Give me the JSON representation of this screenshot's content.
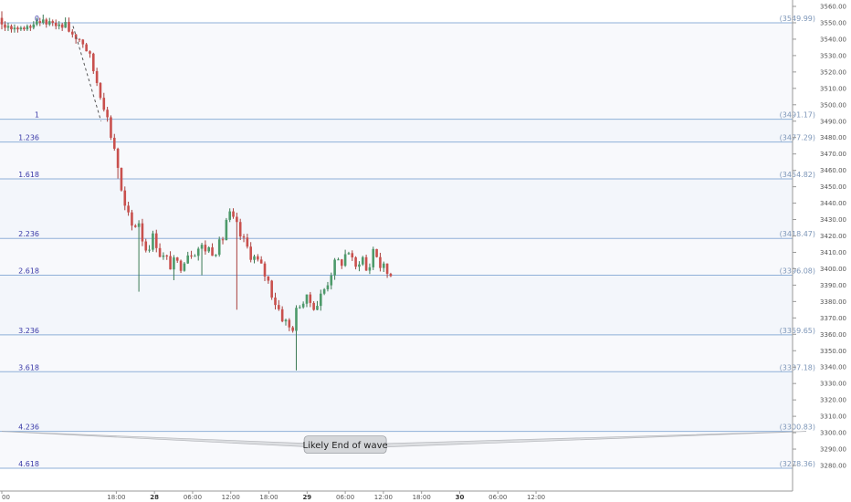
{
  "chart_data": {
    "type": "candlestick",
    "title": "",
    "xlabel": "",
    "ylabel": "",
    "ylim": [
      3275,
      3565
    ],
    "yticks": [
      3280,
      3290,
      3300,
      3310,
      3320,
      3330,
      3340,
      3350,
      3360,
      3370,
      3380,
      3390,
      3400,
      3410,
      3420,
      3430,
      3440,
      3450,
      3460,
      3470,
      3480,
      3490,
      3500,
      3510,
      3520,
      3530,
      3540,
      3550,
      3560
    ],
    "xticks": [
      {
        "label": "00",
        "hour": 0,
        "bold": false
      },
      {
        "label": "18:00",
        "hour": 18,
        "bold": false
      },
      {
        "label": "28",
        "hour": 24,
        "bold": true
      },
      {
        "label": "06:00",
        "hour": 30,
        "bold": false
      },
      {
        "label": "12:00",
        "hour": 36,
        "bold": false
      },
      {
        "label": "18:00",
        "hour": 42,
        "bold": false
      },
      {
        "label": "29",
        "hour": 48,
        "bold": true
      },
      {
        "label": "06:00",
        "hour": 54,
        "bold": false
      },
      {
        "label": "12:00",
        "hour": 60,
        "bold": false
      },
      {
        "label": "18:00",
        "hour": 66,
        "bold": false
      },
      {
        "label": "30",
        "hour": 72,
        "bold": true
      },
      {
        "label": "06:00",
        "hour": 78,
        "bold": false
      },
      {
        "label": "12:00",
        "hour": 84,
        "bold": false
      }
    ],
    "fib_levels": [
      {
        "ratio": "0",
        "price": 3549.99,
        "tag": "(3549.99)"
      },
      {
        "ratio": "1",
        "price": 3491.17,
        "tag": "(3491.17)"
      },
      {
        "ratio": "1.236",
        "price": 3477.29,
        "tag": "(3477.29)"
      },
      {
        "ratio": "1.618",
        "price": 3454.82,
        "tag": "(3454.82)"
      },
      {
        "ratio": "2.236",
        "price": 3418.47,
        "tag": "(3418.47)"
      },
      {
        "ratio": "2.618",
        "price": 3396.08,
        "tag": "(3396.08)"
      },
      {
        "ratio": "3.236",
        "price": 3359.65,
        "tag": "(3359.65)"
      },
      {
        "ratio": "3.618",
        "price": 3337.18,
        "tag": "(3337.18)"
      },
      {
        "ratio": "4.236",
        "price": 3300.83,
        "tag": "(3300.83)"
      },
      {
        "ratio": "4.618",
        "price": 3278.36,
        "tag": "(3278.36)"
      }
    ],
    "trend_line": {
      "from": {
        "hour": 11.2,
        "price": 3548
      },
      "to": {
        "hour": 15.6,
        "price": 3490
      }
    },
    "callout": {
      "text": "Likely End of wave",
      "anchor_price": 3300.8,
      "left_hour": 11.2,
      "right_hour": 86.5,
      "tip_hour": 54
    },
    "anchors": [
      {
        "hour": 10.0,
        "price": 3547
      },
      {
        "hour": 11.5,
        "price": 3543
      },
      {
        "hour": 13.0,
        "price": 3538
      },
      {
        "hour": 14.5,
        "price": 3520
      },
      {
        "hour": 16.0,
        "price": 3502
      },
      {
        "hour": 17.0,
        "price": 3484
      },
      {
        "hour": 18.0,
        "price": 3470
      },
      {
        "hour": 19.0,
        "price": 3440
      },
      {
        "hour": 20.5,
        "price": 3425
      },
      {
        "hour": 21.5,
        "price": 3430
      },
      {
        "hour": 22.5,
        "price": 3412
      },
      {
        "hour": 24.0,
        "price": 3420
      },
      {
        "hour": 25.0,
        "price": 3408
      },
      {
        "hour": 26.5,
        "price": 3403
      },
      {
        "hour": 28.0,
        "price": 3402
      },
      {
        "hour": 29.0,
        "price": 3410
      },
      {
        "hour": 31.0,
        "price": 3413
      },
      {
        "hour": 33.0,
        "price": 3412
      },
      {
        "hour": 34.5,
        "price": 3414
      },
      {
        "hour": 35.5,
        "price": 3434
      },
      {
        "hour": 36.8,
        "price": 3426
      },
      {
        "hour": 38.0,
        "price": 3416
      },
      {
        "hour": 40.0,
        "price": 3405
      },
      {
        "hour": 41.5,
        "price": 3396
      },
      {
        "hour": 43.0,
        "price": 3380
      },
      {
        "hour": 44.5,
        "price": 3368
      },
      {
        "hour": 45.5,
        "price": 3362
      },
      {
        "hour": 46.8,
        "price": 3380
      },
      {
        "hour": 48.5,
        "price": 3380
      },
      {
        "hour": 49.5,
        "price": 3378
      },
      {
        "hour": 51.0,
        "price": 3390
      },
      {
        "hour": 52.0,
        "price": 3401
      },
      {
        "hour": 53.5,
        "price": 3405
      },
      {
        "hour": 54.5,
        "price": 3412
      },
      {
        "hour": 55.5,
        "price": 3398
      },
      {
        "hour": 56.5,
        "price": 3410
      },
      {
        "hour": 57.5,
        "price": 3396
      },
      {
        "hour": 58.5,
        "price": 3414
      },
      {
        "hour": 59.5,
        "price": 3402
      },
      {
        "hour": 60.5,
        "price": 3398
      },
      {
        "hour": 61.5,
        "price": 3397
      }
    ]
  }
}
